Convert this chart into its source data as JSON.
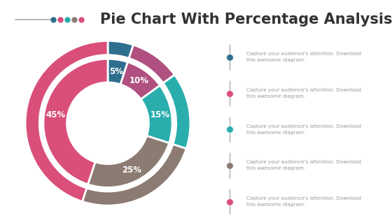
{
  "title": "Pie Chart With Percentage Analysis",
  "title_fontsize": 15,
  "title_color": "#333333",
  "background_color": "#ffffff",
  "slices": [
    5,
    10,
    15,
    25,
    45
  ],
  "labels": [
    "5%",
    "10%",
    "15%",
    "25%",
    "45%"
  ],
  "colors": [
    "#2e6e8e",
    "#b05080",
    "#2aadad",
    "#8c7b72",
    "#d94f7a"
  ],
  "start_angle": 90,
  "sidebar_dot_colors": [
    "#2e6e8e",
    "#d94f7a",
    "#2aadad",
    "#8c7b72",
    "#d94f7a"
  ],
  "sidebar_texts": [
    "Capture your audience's attention. Download\nthis awesome diagram.",
    "Capture your audience's attention. Download\nthis awesome diagram.",
    "Capture your audience's attention. Download\nthis awesome diagram.",
    "Capture your audience's attention. Download\nthis awesome diagram.",
    "Capture your audience's attention. Download\nthis awesome diagram."
  ],
  "title_decoration_colors": [
    "#2e6e8e",
    "#d94f7a",
    "#2aadad",
    "#8c7b72",
    "#d94f7a"
  ]
}
